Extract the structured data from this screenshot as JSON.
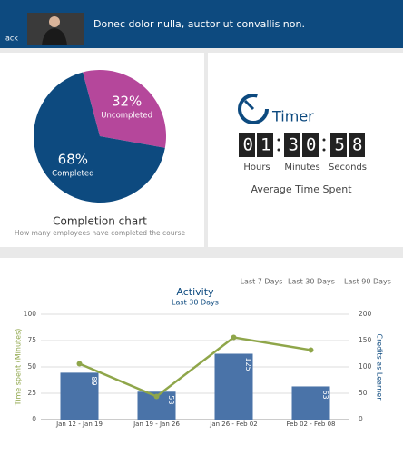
{
  "header": {
    "back": "ack",
    "title": "Donec dolor nulla, auctor ut convallis non."
  },
  "timer": {
    "title": "Timer",
    "hours": "01",
    "minutes": "30",
    "seconds": "58",
    "hours_label": "Hours",
    "minutes_label": "Minutes",
    "seconds_label": "Seconds",
    "caption": "Average Time Spent"
  },
  "filters": [
    "Last 7 Days",
    "Last 30 Days",
    "Last 90 Days"
  ],
  "chart_data": [
    {
      "type": "pie",
      "title": "Completion chart",
      "subtitle": "How many employees have completed the course",
      "categories": [
        "Uncompleted",
        "Completed"
      ],
      "values": [
        32,
        68
      ],
      "value_labels": [
        "32%",
        "68%"
      ],
      "colors": [
        "#b5479b",
        "#0d4a7f"
      ]
    },
    {
      "type": "bar",
      "title": "Activity",
      "subtitle": "Last 30 Days",
      "ylabel": "Time spent (Minutes)",
      "y2label": "Credits as Learner",
      "categories": [
        "Jan 12 - Jan 19",
        "Jan 19 - Jan 26",
        "Jan 26 - Feb 02",
        "Feb 02 - Feb 08"
      ],
      "series": [
        {
          "type": "bar",
          "axis": "y2",
          "color": "#4a73a8",
          "values": [
            89,
            53,
            125,
            63
          ]
        },
        {
          "type": "line",
          "color": "#8fa64a",
          "values": [
            53,
            22,
            78,
            66
          ]
        }
      ],
      "ylim": [
        0,
        100
      ],
      "yticks": [
        0,
        25,
        50,
        75,
        100
      ],
      "y2lim": [
        0,
        200
      ],
      "y2ticks": [
        0,
        50,
        100,
        150,
        200
      ],
      "grid": true
    }
  ]
}
